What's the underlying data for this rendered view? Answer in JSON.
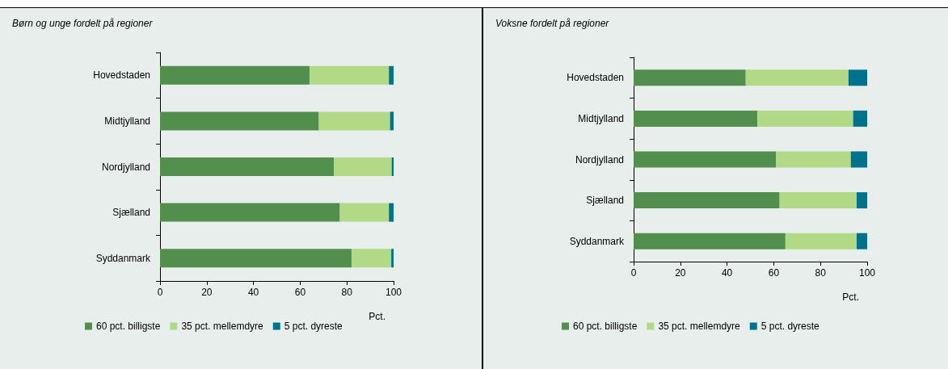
{
  "chart_data": [
    {
      "type": "bar",
      "orientation": "horizontal",
      "stacked": true,
      "title": "Børn og unge fordelt på regioner",
      "xlabel": "Pct.",
      "categories": [
        "Hovedstaden",
        "Midtjylland",
        "Nordjylland",
        "Sjælland",
        "Syddanmark"
      ],
      "xlim": [
        0,
        100
      ],
      "xticks": [
        0,
        20,
        40,
        60,
        80,
        100
      ],
      "grid": false,
      "legend": "bottom",
      "series": [
        {
          "name": "60 pct. billigste",
          "color": "#528f4c",
          "values": [
            64,
            68,
            74.4,
            77,
            82
          ]
        },
        {
          "name": "35 pct. mellemdyre",
          "color": "#b0da85",
          "values": [
            34,
            30.5,
            24.8,
            21,
            17
          ]
        },
        {
          "name": "5 pct. dyreste",
          "color": "#00728c",
          "values": [
            2,
            1.5,
            0.8,
            2,
            1
          ]
        }
      ]
    },
    {
      "type": "bar",
      "orientation": "horizontal",
      "stacked": true,
      "title": "Voksne fordelt på regioner",
      "xlabel": "Pct.",
      "categories": [
        "Hovedstaden",
        "Midtjylland",
        "Nordjylland",
        "Sjælland",
        "Syddanmark"
      ],
      "xlim": [
        0,
        100
      ],
      "xticks": [
        0,
        20,
        40,
        60,
        80,
        100
      ],
      "grid": false,
      "legend": "bottom",
      "series": [
        {
          "name": "60 pct. billigste",
          "color": "#528f4c",
          "values": [
            48,
            53,
            61,
            62.5,
            65
          ]
        },
        {
          "name": "35 pct. mellemdyre",
          "color": "#b0da85",
          "values": [
            44,
            41,
            32,
            33,
            30.5
          ]
        },
        {
          "name": "5 pct. dyreste",
          "color": "#00728c",
          "values": [
            8,
            6,
            7,
            4.5,
            4.5
          ]
        }
      ]
    }
  ]
}
